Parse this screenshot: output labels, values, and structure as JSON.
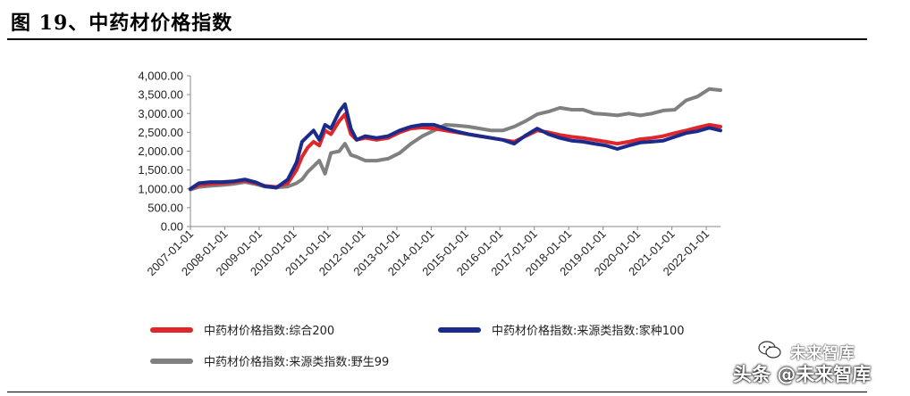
{
  "figure": {
    "title": "图 19、中药材价格指数"
  },
  "chart_data": {
    "type": "line",
    "title": "",
    "xlabel": "",
    "ylabel": "",
    "ylim": [
      0,
      4000
    ],
    "y_ticks": [
      "4,000.00",
      "3,500.00",
      "3,000.00",
      "2,500.00",
      "2,000.00",
      "1,500.00",
      "1,000.00",
      "500.00",
      "0.00"
    ],
    "x_ticks": [
      "2007-01-01",
      "2008-01-01",
      "2009-01-01",
      "2010-01-01",
      "2011-01-01",
      "2012-01-01",
      "2013-01-01",
      "2014-01-01",
      "2015-01-01",
      "2016-01-01",
      "2017-01-01",
      "2018-01-01",
      "2019-01-01",
      "2020-01-01",
      "2021-01-01",
      "2022-01-01"
    ],
    "x_range": [
      "2007-01-01",
      "2022-06-01"
    ],
    "legend_position": "bottom",
    "series": [
      {
        "name": "中药材价格指数:综合200",
        "color": "#e0262b",
        "points": [
          [
            "2007-01-01",
            1000
          ],
          [
            "2007-04-01",
            1100
          ],
          [
            "2007-08-01",
            1130
          ],
          [
            "2007-12-01",
            1150
          ],
          [
            "2008-04-01",
            1180
          ],
          [
            "2008-08-01",
            1220
          ],
          [
            "2008-12-01",
            1150
          ],
          [
            "2009-03-01",
            1080
          ],
          [
            "2009-07-01",
            1050
          ],
          [
            "2009-11-01",
            1150
          ],
          [
            "2010-02-01",
            1500
          ],
          [
            "2010-04-01",
            1850
          ],
          [
            "2010-06-01",
            2100
          ],
          [
            "2010-08-01",
            2250
          ],
          [
            "2010-10-01",
            2150
          ],
          [
            "2010-12-01",
            2550
          ],
          [
            "2011-02-01",
            2450
          ],
          [
            "2011-05-01",
            2800
          ],
          [
            "2011-07-01",
            2980
          ],
          [
            "2011-09-01",
            2450
          ],
          [
            "2011-11-01",
            2300
          ],
          [
            "2012-02-01",
            2350
          ],
          [
            "2012-06-01",
            2300
          ],
          [
            "2012-10-01",
            2350
          ],
          [
            "2013-02-01",
            2500
          ],
          [
            "2013-06-01",
            2600
          ],
          [
            "2013-10-01",
            2630
          ],
          [
            "2014-02-01",
            2600
          ],
          [
            "2014-06-01",
            2550
          ],
          [
            "2014-10-01",
            2500
          ],
          [
            "2015-02-01",
            2450
          ],
          [
            "2015-06-01",
            2400
          ],
          [
            "2015-10-01",
            2350
          ],
          [
            "2016-02-01",
            2300
          ],
          [
            "2016-06-01",
            2250
          ],
          [
            "2016-10-01",
            2400
          ],
          [
            "2017-02-01",
            2550
          ],
          [
            "2017-06-01",
            2500
          ],
          [
            "2017-10-01",
            2430
          ],
          [
            "2018-02-01",
            2380
          ],
          [
            "2018-06-01",
            2350
          ],
          [
            "2018-10-01",
            2300
          ],
          [
            "2019-02-01",
            2250
          ],
          [
            "2019-06-01",
            2200
          ],
          [
            "2019-10-01",
            2250
          ],
          [
            "2020-02-01",
            2320
          ],
          [
            "2020-06-01",
            2350
          ],
          [
            "2020-10-01",
            2400
          ],
          [
            "2021-02-01",
            2480
          ],
          [
            "2021-06-01",
            2550
          ],
          [
            "2021-10-01",
            2630
          ],
          [
            "2022-02-01",
            2700
          ],
          [
            "2022-06-01",
            2650
          ]
        ]
      },
      {
        "name": "中药材价格指数:来源类指数:家种100",
        "color": "#1a2b8a",
        "points": [
          [
            "2007-01-01",
            1000
          ],
          [
            "2007-04-01",
            1150
          ],
          [
            "2007-08-01",
            1180
          ],
          [
            "2007-12-01",
            1180
          ],
          [
            "2008-04-01",
            1200
          ],
          [
            "2008-08-01",
            1250
          ],
          [
            "2008-12-01",
            1170
          ],
          [
            "2009-03-01",
            1070
          ],
          [
            "2009-07-01",
            1030
          ],
          [
            "2009-11-01",
            1250
          ],
          [
            "2010-02-01",
            1700
          ],
          [
            "2010-04-01",
            2250
          ],
          [
            "2010-06-01",
            2400
          ],
          [
            "2010-08-01",
            2550
          ],
          [
            "2010-10-01",
            2300
          ],
          [
            "2010-12-01",
            2700
          ],
          [
            "2011-02-01",
            2600
          ],
          [
            "2011-05-01",
            3050
          ],
          [
            "2011-07-01",
            3250
          ],
          [
            "2011-09-01",
            2600
          ],
          [
            "2011-11-01",
            2300
          ],
          [
            "2012-02-01",
            2400
          ],
          [
            "2012-06-01",
            2350
          ],
          [
            "2012-10-01",
            2400
          ],
          [
            "2013-02-01",
            2550
          ],
          [
            "2013-06-01",
            2650
          ],
          [
            "2013-10-01",
            2700
          ],
          [
            "2014-02-01",
            2700
          ],
          [
            "2014-06-01",
            2600
          ],
          [
            "2014-10-01",
            2520
          ],
          [
            "2015-02-01",
            2450
          ],
          [
            "2015-06-01",
            2400
          ],
          [
            "2015-10-01",
            2350
          ],
          [
            "2016-02-01",
            2300
          ],
          [
            "2016-06-01",
            2200
          ],
          [
            "2016-10-01",
            2420
          ],
          [
            "2017-02-01",
            2600
          ],
          [
            "2017-06-01",
            2450
          ],
          [
            "2017-10-01",
            2350
          ],
          [
            "2018-02-01",
            2280
          ],
          [
            "2018-06-01",
            2250
          ],
          [
            "2018-10-01",
            2200
          ],
          [
            "2019-02-01",
            2150
          ],
          [
            "2019-06-01",
            2060
          ],
          [
            "2019-10-01",
            2150
          ],
          [
            "2020-02-01",
            2230
          ],
          [
            "2020-06-01",
            2250
          ],
          [
            "2020-10-01",
            2280
          ],
          [
            "2021-02-01",
            2380
          ],
          [
            "2021-06-01",
            2480
          ],
          [
            "2021-10-01",
            2530
          ],
          [
            "2022-02-01",
            2620
          ],
          [
            "2022-06-01",
            2550
          ]
        ]
      },
      {
        "name": "中药材价格指数:来源类指数:野生99",
        "color": "#808080",
        "points": [
          [
            "2007-01-01",
            980
          ],
          [
            "2007-04-01",
            1050
          ],
          [
            "2007-08-01",
            1080
          ],
          [
            "2007-12-01",
            1100
          ],
          [
            "2008-04-01",
            1130
          ],
          [
            "2008-08-01",
            1180
          ],
          [
            "2008-12-01",
            1120
          ],
          [
            "2009-03-01",
            1060
          ],
          [
            "2009-07-01",
            1040
          ],
          [
            "2009-11-01",
            1060
          ],
          [
            "2010-02-01",
            1150
          ],
          [
            "2010-04-01",
            1250
          ],
          [
            "2010-06-01",
            1450
          ],
          [
            "2010-08-01",
            1600
          ],
          [
            "2010-10-01",
            1750
          ],
          [
            "2010-12-01",
            1400
          ],
          [
            "2011-02-01",
            1950
          ],
          [
            "2011-05-01",
            2000
          ],
          [
            "2011-07-01",
            2200
          ],
          [
            "2011-09-01",
            1900
          ],
          [
            "2011-11-01",
            1850
          ],
          [
            "2012-02-01",
            1750
          ],
          [
            "2012-06-01",
            1750
          ],
          [
            "2012-10-01",
            1800
          ],
          [
            "2013-02-01",
            1950
          ],
          [
            "2013-06-01",
            2200
          ],
          [
            "2013-10-01",
            2400
          ],
          [
            "2014-02-01",
            2550
          ],
          [
            "2014-06-01",
            2700
          ],
          [
            "2014-10-01",
            2680
          ],
          [
            "2015-02-01",
            2650
          ],
          [
            "2015-06-01",
            2600
          ],
          [
            "2015-10-01",
            2550
          ],
          [
            "2016-02-01",
            2550
          ],
          [
            "2016-06-01",
            2650
          ],
          [
            "2016-10-01",
            2800
          ],
          [
            "2017-02-01",
            2980
          ],
          [
            "2017-06-01",
            3050
          ],
          [
            "2017-10-01",
            3150
          ],
          [
            "2018-02-01",
            3100
          ],
          [
            "2018-06-01",
            3100
          ],
          [
            "2018-10-01",
            3000
          ],
          [
            "2019-02-01",
            2980
          ],
          [
            "2019-06-01",
            2950
          ],
          [
            "2019-10-01",
            3000
          ],
          [
            "2020-02-01",
            2950
          ],
          [
            "2020-06-01",
            3000
          ],
          [
            "2020-10-01",
            3080
          ],
          [
            "2021-02-01",
            3100
          ],
          [
            "2021-06-01",
            3350
          ],
          [
            "2021-10-01",
            3450
          ],
          [
            "2022-02-01",
            3650
          ],
          [
            "2022-06-01",
            3620
          ]
        ]
      }
    ]
  },
  "legend": [
    {
      "label": "中药材价格指数:综合200",
      "color": "#e0262b"
    },
    {
      "label": "中药材价格指数:来源类指数:家种100",
      "color": "#1a2b8a"
    },
    {
      "label": "中药材价格指数:来源类指数:野生99",
      "color": "#808080"
    }
  ],
  "watermark": {
    "line1": "未来智库",
    "line2": "头条 @未来智库"
  }
}
